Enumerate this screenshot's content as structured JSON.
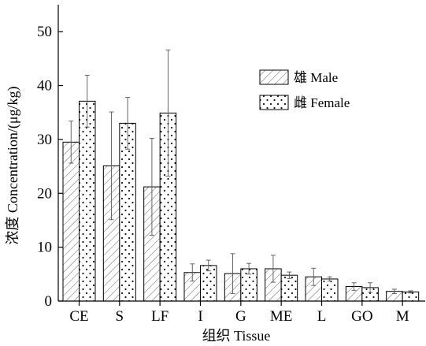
{
  "chart_data": {
    "type": "bar",
    "xlabel": "组织 Tissue",
    "ylabel": "浓度 Concentration/(μg/kg)",
    "ylim": [
      0,
      55
    ],
    "yticks": [
      0,
      10,
      20,
      30,
      40,
      50
    ],
    "categories": [
      "CE",
      "S",
      "LF",
      "I",
      "G",
      "ME",
      "L",
      "GO",
      "M"
    ],
    "series": [
      {
        "name": "雄 Male",
        "pattern": "hatch",
        "values": [
          29.5,
          25.1,
          21.2,
          5.3,
          5.1,
          6.0,
          4.5,
          2.7,
          1.8
        ],
        "errors": [
          3.9,
          10.0,
          9.0,
          1.6,
          3.7,
          2.5,
          1.6,
          0.7,
          0.4
        ]
      },
      {
        "name": "雌 Female",
        "pattern": "dots",
        "values": [
          37.1,
          33.0,
          34.9,
          6.6,
          6.0,
          4.8,
          4.1,
          2.5,
          1.7
        ],
        "errors": [
          4.8,
          4.8,
          11.7,
          1.0,
          1.0,
          0.6,
          0.4,
          0.9,
          0.2
        ]
      }
    ],
    "legend_position": "top-right"
  },
  "legend": {
    "male_label": "雄 Male",
    "female_label": "雌 Female"
  },
  "axes": {
    "xlabel": "组织 Tissue",
    "ylabel": "浓度 Concentration/(μg/kg)"
  },
  "colors": {
    "axis": "#000000",
    "bar_fill": "#ffffff",
    "hatch": "#555555",
    "error_bar": "#555555"
  }
}
